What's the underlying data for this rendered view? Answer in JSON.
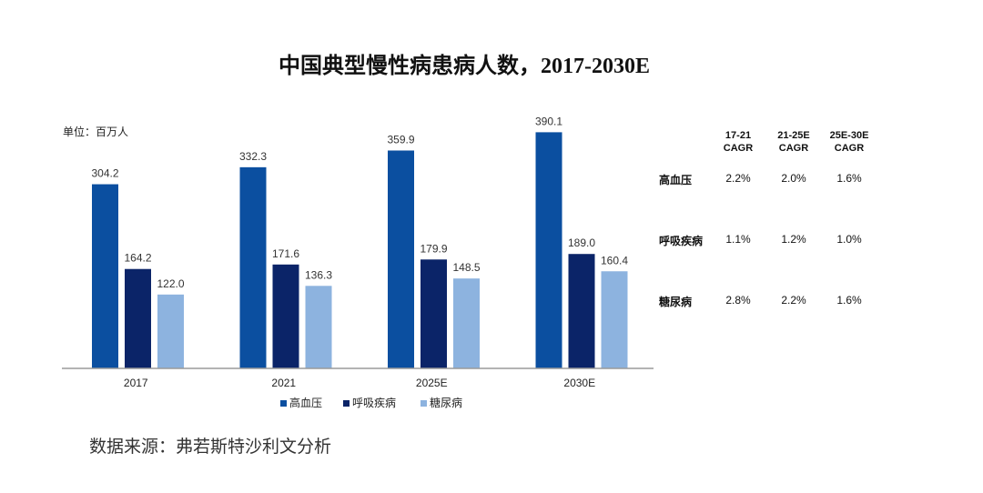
{
  "title": "中国典型慢性病患病人数，2017-2030E",
  "unit_label": "单位：百万人",
  "source": "数据来源：弗若斯特沙利文分析",
  "colors": {
    "hypertension": "#0b4fa0",
    "respiratory": "#0b2468",
    "diabetes": "#8db3df"
  },
  "chart_data": {
    "type": "bar",
    "categories": [
      "2017",
      "2021",
      "2025E",
      "2030E"
    ],
    "series": [
      {
        "name": "高血压",
        "values": [
          304.2,
          332.3,
          359.9,
          390.1
        ],
        "color": "#0b4fa0"
      },
      {
        "name": "呼吸疾病",
        "values": [
          164.2,
          171.6,
          179.9,
          189.0
        ],
        "color": "#0b2468"
      },
      {
        "name": "糖尿病",
        "values": [
          122.0,
          136.3,
          148.5,
          160.4
        ],
        "color": "#8db3df"
      }
    ],
    "data_labels": [
      [
        "304.2",
        "332.3",
        "359.9",
        "390.1"
      ],
      [
        "164.2",
        "171.6",
        "179.9",
        "189.0"
      ],
      [
        "122.0",
        "136.3",
        "148.5",
        "160.4"
      ]
    ],
    "ylim": [
      0,
      400
    ],
    "grid": false,
    "legend": "bottom"
  },
  "cagr_table": {
    "headers": [
      [
        "17-21",
        "CAGR"
      ],
      [
        "21-25E",
        "CAGR"
      ],
      [
        "25E-30E",
        "CAGR"
      ]
    ],
    "rows": [
      {
        "label": "高血压",
        "values": [
          "2.2%",
          "2.0%",
          "1.6%"
        ]
      },
      {
        "label": "呼吸疾病",
        "values": [
          "1.1%",
          "1.2%",
          "1.0%"
        ]
      },
      {
        "label": "糖尿病",
        "values": [
          "2.8%",
          "2.2%",
          "1.6%"
        ]
      }
    ]
  }
}
